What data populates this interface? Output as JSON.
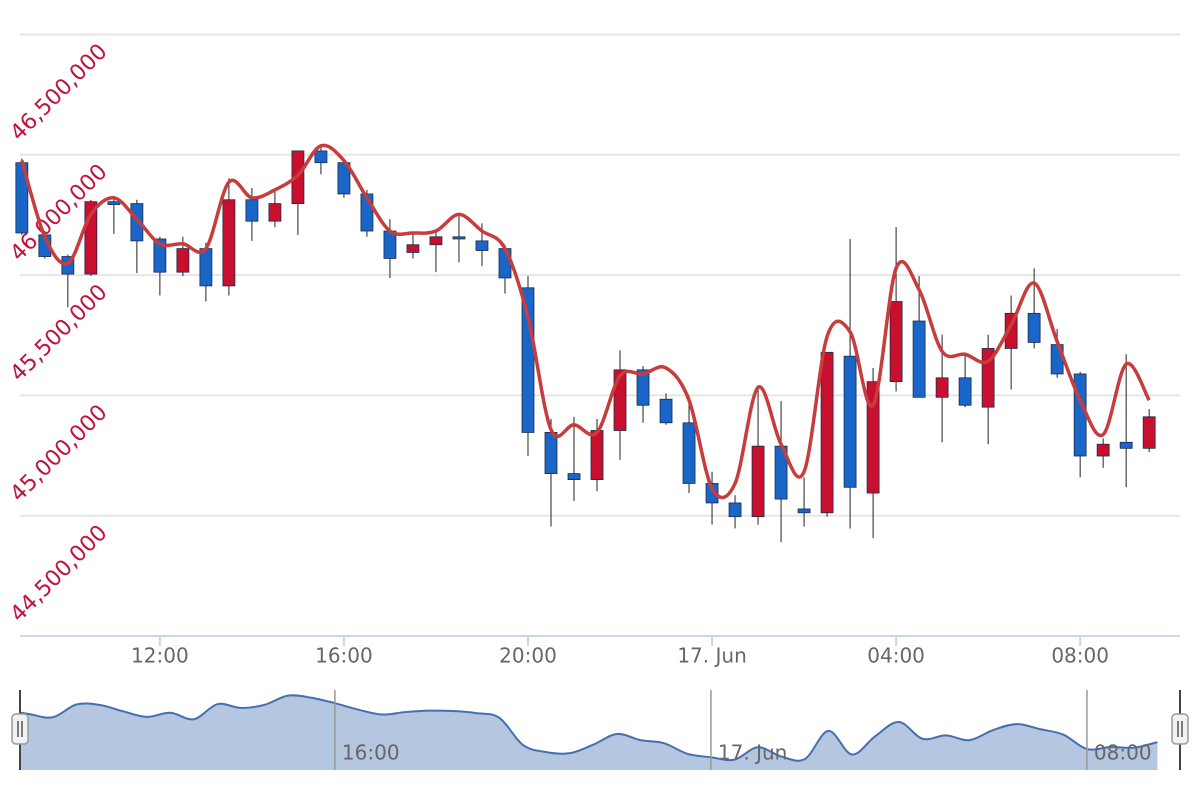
{
  "chart_data": {
    "type": "candlestick",
    "x": [
      9,
      9.5,
      10,
      10.5,
      11,
      11.5,
      12,
      12.5,
      13,
      13.5,
      14,
      14.5,
      15,
      15.5,
      16,
      16.5,
      17,
      17.5,
      18,
      18.5,
      19,
      19.5,
      20,
      20.5,
      21,
      21.5,
      22,
      22.5,
      23,
      23.5,
      24,
      24.5,
      25,
      25.5,
      26,
      26.5,
      27,
      27.5,
      28,
      28.5,
      29,
      29.5,
      30,
      30.5,
      31,
      31.5,
      32,
      32.5,
      33,
      33.5
    ],
    "open": [
      45967000,
      45667000,
      45577000,
      45504000,
      45805000,
      45797000,
      45650000,
      45512000,
      45610000,
      45455000,
      45813000,
      45724000,
      45797000,
      46016000,
      45967000,
      45837000,
      45683000,
      45594000,
      45626000,
      45659000,
      45642000,
      45610000,
      45447000,
      44846000,
      44675000,
      44650000,
      44854000,
      45106000,
      44984000,
      44886000,
      44634000,
      44553000,
      44496000,
      44789000,
      44528000,
      44512000,
      45163000,
      44594000,
      45057000,
      45309000,
      44992000,
      45073000,
      44951000,
      45195000,
      45341000,
      45211000,
      45089000,
      44748000,
      44805000,
      44780000
    ],
    "high": [
      45984000,
      45683000,
      45585000,
      45813000,
      45829000,
      45813000,
      45659000,
      45659000,
      45634000,
      45902000,
      45862000,
      45846000,
      46016000,
      46033000,
      45984000,
      45854000,
      45732000,
      45675000,
      45683000,
      45748000,
      45715000,
      45626000,
      45496000,
      44902000,
      44911000,
      44902000,
      45187000,
      45122000,
      45008000,
      45000000,
      44683000,
      44585000,
      45041000,
      44976000,
      44659000,
      45179000,
      45650000,
      45114000,
      45699000,
      45496000,
      45252000,
      45171000,
      45252000,
      45415000,
      45528000,
      45276000,
      45098000,
      44821000,
      45171000,
      44943000
    ],
    "low": [
      45667000,
      45569000,
      45366000,
      45496000,
      45671000,
      45508000,
      45415000,
      45496000,
      45390000,
      45415000,
      45642000,
      45699000,
      45667000,
      45919000,
      45821000,
      45659000,
      45488000,
      45569000,
      45512000,
      45553000,
      45537000,
      45423000,
      44748000,
      44455000,
      44561000,
      44602000,
      44732000,
      44886000,
      44878000,
      44594000,
      44463000,
      44447000,
      44463000,
      44390000,
      44455000,
      44496000,
      44447000,
      44407000,
      45016000,
      44992000,
      44805000,
      44951000,
      44797000,
      45024000,
      45195000,
      45073000,
      44659000,
      44699000,
      44618000,
      44764000
    ],
    "close": [
      45675000,
      45577000,
      45504000,
      45805000,
      45793000,
      45642000,
      45512000,
      45610000,
      45455000,
      45813000,
      45724000,
      45797000,
      46016000,
      45967000,
      45837000,
      45683000,
      45569000,
      45626000,
      45659000,
      45650000,
      45602000,
      45488000,
      44846000,
      44675000,
      44650000,
      44854000,
      45106000,
      44959000,
      44886000,
      44634000,
      44553000,
      44496000,
      44789000,
      44569000,
      44512000,
      45179000,
      44618000,
      45057000,
      45390000,
      44992000,
      45073000,
      44959000,
      45195000,
      45341000,
      45220000,
      45089000,
      44748000,
      44797000,
      44780000,
      44911000
    ],
    "upColor": "#c8102e",
    "downColor": "#1a66c8",
    "wickColor": "#222222",
    "overlay": {
      "type": "spline",
      "color": "#c83c3c",
      "values": [
        45976000,
        45659000,
        45549000,
        45752000,
        45821000,
        45732000,
        45630000,
        45630000,
        45610000,
        45886000,
        45821000,
        45854000,
        45915000,
        46037000,
        45976000,
        45821000,
        45683000,
        45675000,
        45683000,
        45752000,
        45683000,
        45610000,
        45325000,
        44858000,
        44878000,
        44846000,
        45081000,
        45089000,
        45114000,
        44980000,
        44614000,
        44634000,
        45033000,
        44797000,
        44683000,
        45244000,
        45264000,
        44959000,
        45528000,
        45439000,
        45183000,
        45171000,
        45142000,
        45293000,
        45467000,
        45224000,
        44980000,
        44837000,
        45130000,
        44980000
      ]
    },
    "xlim": [
      8.96,
      34.17
    ],
    "xticks": [
      {
        "value": 12,
        "label": "12:00"
      },
      {
        "value": 16,
        "label": "16:00"
      },
      {
        "value": 20,
        "label": "20:00"
      },
      {
        "value": 24,
        "label": "17. Jun"
      },
      {
        "value": 28,
        "label": "04:00"
      },
      {
        "value": 32,
        "label": "08:00"
      }
    ],
    "ylim": [
      44000000,
      46560000
    ],
    "yticks": [
      {
        "value": 44500000,
        "label": "44,500,000"
      },
      {
        "value": 45000000,
        "label": "45,000,000"
      },
      {
        "value": 45500000,
        "label": "45,500,000"
      },
      {
        "value": 46000000,
        "label": "46,000,000"
      },
      {
        "value": 46500000,
        "label": "46,500,000"
      }
    ],
    "ytick_color": "#c0143c",
    "grid": true,
    "navigator": {
      "color": "#b4c6e0",
      "line_color": "#4470b0",
      "xlim": [
        9.3,
        33.98
      ],
      "ylim": [
        44250000,
        46150000
      ],
      "xticks": [
        {
          "value": 16,
          "label": "16:00"
        },
        {
          "value": 24,
          "label": "17. Jun"
        },
        {
          "value": 32,
          "label": "08:00"
        }
      ]
    }
  }
}
